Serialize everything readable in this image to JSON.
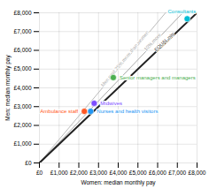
{
  "chart_data": {
    "type": "scatter",
    "xlabel": "Women: median monthly pay",
    "ylabel": "Men: median monthly pay",
    "xlim": [
      0,
      8000
    ],
    "ylim": [
      0,
      8000
    ],
    "xticks": [
      {
        "value": 0,
        "label": "£0"
      },
      {
        "value": 1000,
        "label": "£1,000"
      },
      {
        "value": 2000,
        "label": "£2,000"
      },
      {
        "value": 3000,
        "label": "£3,000"
      },
      {
        "value": 4000,
        "label": "£4,000"
      },
      {
        "value": 5000,
        "label": "£5,000"
      },
      {
        "value": 6000,
        "label": "£6,000"
      },
      {
        "value": 7000,
        "label": "£7,000"
      },
      {
        "value": 8000,
        "label": "£8,000"
      }
    ],
    "yticks": [
      {
        "value": 0,
        "label": "£0"
      },
      {
        "value": 1000,
        "label": "£1,000"
      },
      {
        "value": 2000,
        "label": "£2,000"
      },
      {
        "value": 3000,
        "label": "£3,000"
      },
      {
        "value": 4000,
        "label": "£4,000"
      },
      {
        "value": 5000,
        "label": "£5,000"
      },
      {
        "value": 6000,
        "label": "£6,000"
      },
      {
        "value": 7000,
        "label": "£7,000"
      },
      {
        "value": 8000,
        "label": "£8,000"
      }
    ],
    "grid": true,
    "labels": [
      "Consultants",
      "Senior managers and managers",
      "Midwives",
      "Nurses and health visitors",
      "Ambulance staff"
    ],
    "x": [
      7500,
      3750,
      2780,
      2600,
      2280
    ],
    "values": [
      7680,
      4550,
      3180,
      2750,
      2750
    ],
    "colors": [
      "#00bcd4",
      "#4caf50",
      "#7c4dff",
      "#2196f3",
      "#ff5722"
    ],
    "reference_lines": [
      {
        "label": "Men paid 25% more than women",
        "color": "#bbbbbb",
        "slope": 1.25
      },
      {
        "label": "10% more",
        "color": "#aaaaaa",
        "slope": 1.1
      },
      {
        "label": "EQUAL pay",
        "color": "#222222",
        "slope": 1
      }
    ]
  }
}
